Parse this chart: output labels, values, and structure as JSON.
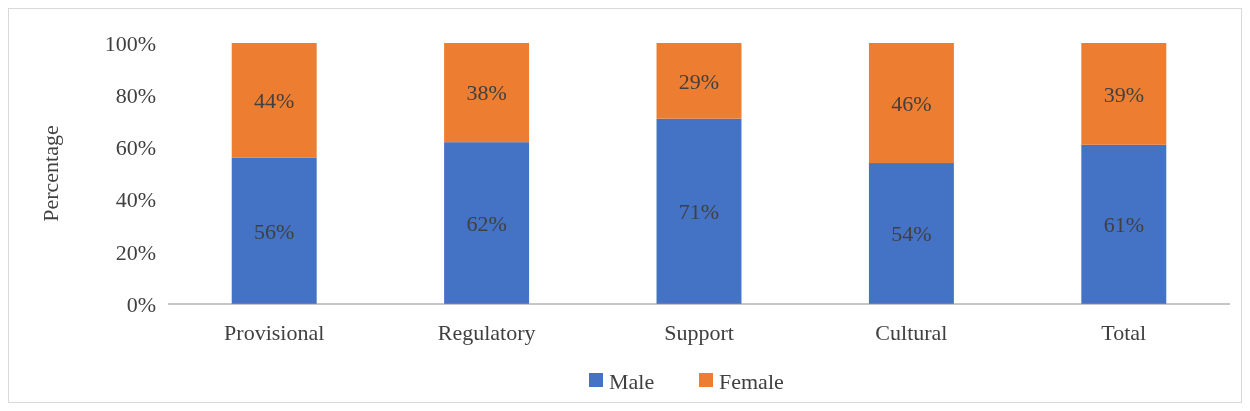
{
  "chart_data": {
    "type": "bar",
    "stacked": true,
    "ylabel": "Percentage",
    "categories": [
      "Provisional",
      "Regulatory",
      "Support",
      "Cultural",
      "Total"
    ],
    "series": [
      {
        "name": "Male",
        "color": "#4472c4",
        "values": [
          56,
          62,
          71,
          54,
          61
        ],
        "value_labels": [
          "56%",
          "62%",
          "71%",
          "54%",
          "61%"
        ]
      },
      {
        "name": "Female",
        "color": "#ed7d31",
        "values": [
          44,
          38,
          29,
          46,
          39
        ],
        "value_labels": [
          "44%",
          "38%",
          "29%",
          "46%",
          "39%"
        ]
      }
    ],
    "ylim": [
      0,
      100
    ],
    "yticks": [
      {
        "value": 0,
        "label": "0%"
      },
      {
        "value": 20,
        "label": "20%"
      },
      {
        "value": 40,
        "label": "40%"
      },
      {
        "value": 60,
        "label": "60%"
      },
      {
        "value": 80,
        "label": "80%"
      },
      {
        "value": 100,
        "label": "100%"
      }
    ],
    "grid": false,
    "legend": "bottom"
  }
}
